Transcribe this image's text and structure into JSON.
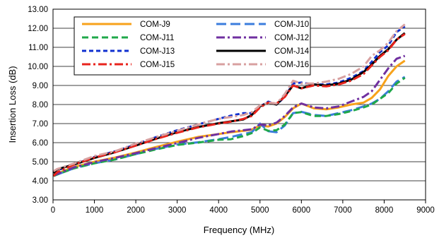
{
  "chart_data": {
    "type": "line",
    "title": "",
    "xlabel": "Frequency (MHz)",
    "ylabel": "Insertion Loss (dB)",
    "xlim": [
      0,
      9000
    ],
    "ylim": [
      3.0,
      13.0
    ],
    "x_ticks": [
      "0",
      "1000",
      "2000",
      "3000",
      "4000",
      "5000",
      "6000",
      "7000",
      "8000",
      "9000"
    ],
    "y_ticks": [
      "3.00",
      "4.00",
      "5.00",
      "6.00",
      "7.00",
      "8.00",
      "9.00",
      "10.00",
      "11.00",
      "12.00",
      "13.00"
    ],
    "grid": "horizontal",
    "legend_position": "top-left",
    "x": [
      10,
      100,
      500,
      1000,
      1500,
      2000,
      2500,
      3000,
      3500,
      4000,
      4300,
      4600,
      4800,
      5000,
      5200,
      5400,
      5600,
      5800,
      6000,
      6300,
      6600,
      6900,
      7200,
      7500,
      7700,
      7900,
      8100,
      8300,
      8500
    ],
    "series": [
      {
        "name": "COM-J9",
        "color": "#F7A21B",
        "dash": "solid",
        "values": [
          4.3,
          4.38,
          4.72,
          5.0,
          5.22,
          5.48,
          5.78,
          6.05,
          6.3,
          6.45,
          6.55,
          6.62,
          6.68,
          6.9,
          6.85,
          7.0,
          7.35,
          7.8,
          8.05,
          7.8,
          7.75,
          7.85,
          8.0,
          8.1,
          8.35,
          8.8,
          9.5,
          10.0,
          10.3
        ]
      },
      {
        "name": "COM-J10",
        "color": "#3B7DDD",
        "dash": "longdash",
        "values": [
          4.25,
          4.33,
          4.65,
          4.92,
          5.12,
          5.4,
          5.68,
          5.9,
          6.02,
          6.18,
          6.3,
          6.45,
          6.55,
          7.0,
          6.6,
          6.55,
          6.9,
          7.55,
          7.62,
          7.45,
          7.4,
          7.55,
          7.7,
          7.9,
          8.05,
          8.3,
          8.7,
          9.2,
          9.45
        ]
      },
      {
        "name": "COM-J11",
        "color": "#1FA84A",
        "dash": "dash",
        "values": [
          4.25,
          4.33,
          4.65,
          4.92,
          5.12,
          5.4,
          5.65,
          5.88,
          6.0,
          6.15,
          6.18,
          6.35,
          6.5,
          6.8,
          6.62,
          6.65,
          6.95,
          7.55,
          7.6,
          7.4,
          7.4,
          7.5,
          7.65,
          7.85,
          8.0,
          8.3,
          8.6,
          9.1,
          9.4
        ]
      },
      {
        "name": "COM-J12",
        "color": "#7030A0",
        "dash": "dashdot",
        "values": [
          4.28,
          4.36,
          4.7,
          4.98,
          5.2,
          5.45,
          5.72,
          5.98,
          6.25,
          6.45,
          6.58,
          6.65,
          6.7,
          6.95,
          6.9,
          7.05,
          7.4,
          7.85,
          8.05,
          7.85,
          7.8,
          7.9,
          8.15,
          8.4,
          8.7,
          9.3,
          9.9,
          10.4,
          10.55
        ]
      },
      {
        "name": "COM-J13",
        "color": "#1030D0",
        "dash": "shortdash",
        "values": [
          4.45,
          4.55,
          4.85,
          5.25,
          5.55,
          5.9,
          6.3,
          6.65,
          6.95,
          7.25,
          7.42,
          7.55,
          7.55,
          7.9,
          8.15,
          8.0,
          8.4,
          9.1,
          9.15,
          9.05,
          9.05,
          9.15,
          9.4,
          9.75,
          10.25,
          10.75,
          11.1,
          11.8,
          12.1
        ]
      },
      {
        "name": "COM-J14",
        "color": "#000000",
        "dash": "solid",
        "values": [
          4.4,
          4.6,
          4.85,
          5.2,
          5.5,
          5.85,
          6.22,
          6.55,
          6.82,
          7.02,
          7.12,
          7.22,
          7.45,
          7.9,
          8.1,
          8.0,
          8.45,
          9.0,
          8.85,
          9.05,
          9.0,
          9.1,
          9.3,
          9.7,
          10.1,
          10.55,
          10.9,
          11.4,
          11.75
        ]
      },
      {
        "name": "COM-J15",
        "color": "#E8231C",
        "dash": "dashdot",
        "values": [
          4.25,
          4.45,
          4.85,
          5.22,
          5.5,
          5.85,
          6.2,
          6.52,
          6.8,
          7.0,
          7.1,
          7.25,
          7.4,
          7.85,
          8.1,
          8.05,
          8.4,
          9.0,
          8.85,
          9.0,
          8.95,
          9.05,
          9.25,
          9.6,
          10.05,
          10.5,
          10.85,
          11.4,
          11.7
        ]
      },
      {
        "name": "COM-J16",
        "color": "#D8A0A0",
        "dash": "dashdot",
        "values": [
          4.5,
          4.62,
          4.9,
          5.3,
          5.55,
          5.95,
          6.3,
          6.62,
          6.95,
          7.25,
          7.35,
          7.45,
          7.6,
          7.95,
          8.1,
          8.05,
          8.55,
          9.25,
          9.1,
          9.1,
          9.2,
          9.35,
          9.6,
          10.0,
          10.55,
          10.85,
          11.25,
          11.85,
          12.2
        ]
      }
    ]
  }
}
